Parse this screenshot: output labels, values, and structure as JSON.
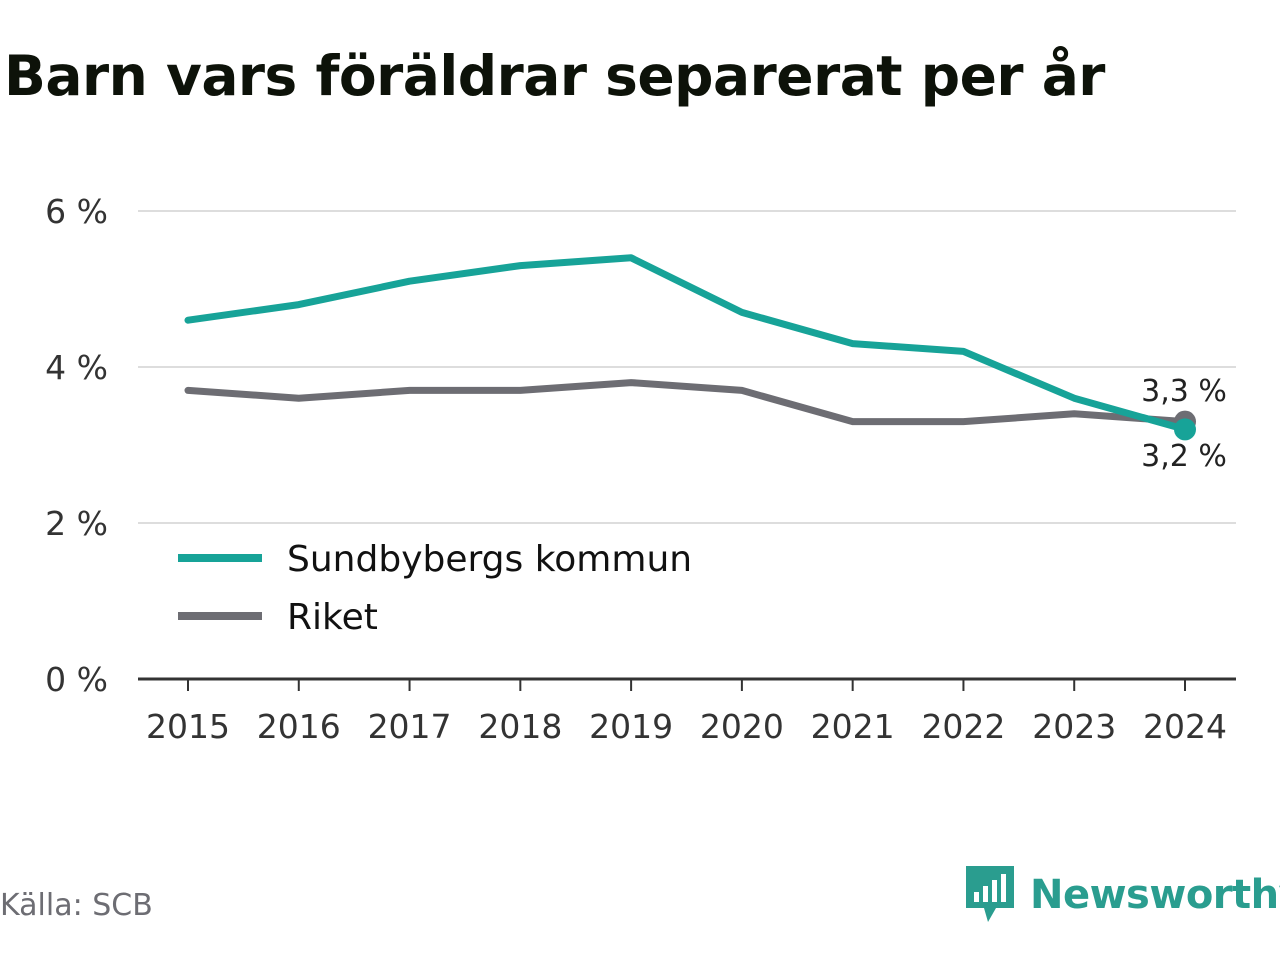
{
  "title": "Barn vars föräldrar separerat per år",
  "source": "Källa: SCB",
  "brand": "Newsworthy",
  "colors": {
    "sundbyberg": "#17a398",
    "riket": "#6d6d73",
    "grid": "#dddddd",
    "axis": "#333333"
  },
  "chart_data": {
    "type": "line",
    "title": "Barn vars föräldrar separerat per år",
    "categories": [
      "2015",
      "2016",
      "2017",
      "2018",
      "2019",
      "2020",
      "2021",
      "2022",
      "2023",
      "2024"
    ],
    "series": [
      {
        "name": "Sundbybergs kommun",
        "values": [
          4.6,
          4.8,
          5.1,
          5.3,
          5.4,
          4.7,
          4.3,
          4.2,
          3.6,
          3.2
        ],
        "end_label": "3,2 %"
      },
      {
        "name": "Riket",
        "values": [
          3.7,
          3.6,
          3.7,
          3.7,
          3.8,
          3.7,
          3.3,
          3.3,
          3.4,
          3.3
        ],
        "end_label": "3,3 %"
      }
    ],
    "ylim": [
      0,
      6
    ],
    "yticks": [
      0,
      2,
      4,
      6
    ],
    "ytick_labels": [
      "0 %",
      "2 %",
      "4 %",
      "6 %"
    ],
    "grid": true,
    "legend_position": "bottom-left"
  }
}
